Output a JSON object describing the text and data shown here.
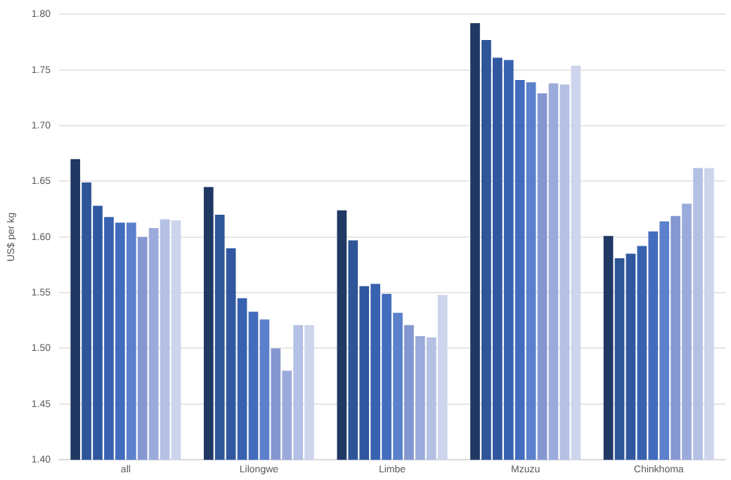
{
  "chart_data": {
    "type": "bar",
    "ylabel": "US$ per kg",
    "categories": [
      "all",
      "Lilongwe",
      "Limbe",
      "Mzuzu",
      "Chinkhoma"
    ],
    "series": [
      {
        "color": "#203864",
        "values": [
          1.67,
          1.645,
          1.624,
          1.792,
          1.601
        ]
      },
      {
        "color": "#2e5597",
        "values": [
          1.649,
          1.62,
          1.597,
          1.777,
          1.581
        ]
      },
      {
        "color": "#3058a0",
        "values": [
          1.628,
          1.59,
          1.556,
          1.761,
          1.585
        ]
      },
      {
        "color": "#3862b0",
        "values": [
          1.618,
          1.545,
          1.558,
          1.759,
          1.592
        ]
      },
      {
        "color": "#426cbe",
        "values": [
          1.613,
          1.533,
          1.549,
          1.741,
          1.605
        ]
      },
      {
        "color": "#5b80cc",
        "values": [
          1.613,
          1.526,
          1.532,
          1.739,
          1.614
        ]
      },
      {
        "color": "#8497d0",
        "values": [
          1.6,
          1.5,
          1.521,
          1.729,
          1.619
        ]
      },
      {
        "color": "#9aabdb",
        "values": [
          1.608,
          1.48,
          1.511,
          1.738,
          1.63
        ]
      },
      {
        "color": "#b4c0e4",
        "values": [
          1.616,
          1.521,
          1.51,
          1.737,
          1.662
        ]
      },
      {
        "color": "#cdd5ec",
        "values": [
          1.615,
          1.521,
          1.548,
          1.754,
          1.662
        ]
      }
    ],
    "ylim": [
      1.4,
      1.8
    ],
    "yticks": [
      {
        "value": 1.4,
        "label": "1.40"
      },
      1.45,
      {
        "value": 1.5,
        "label": "1.50"
      },
      1.55,
      {
        "value": 1.6,
        "label": "1.60"
      },
      1.65,
      {
        "value": 1.7,
        "label": "1.70"
      },
      1.75,
      {
        "value": 1.8,
        "label": "1.80"
      }
    ],
    "grid": "y",
    "legend": false
  }
}
